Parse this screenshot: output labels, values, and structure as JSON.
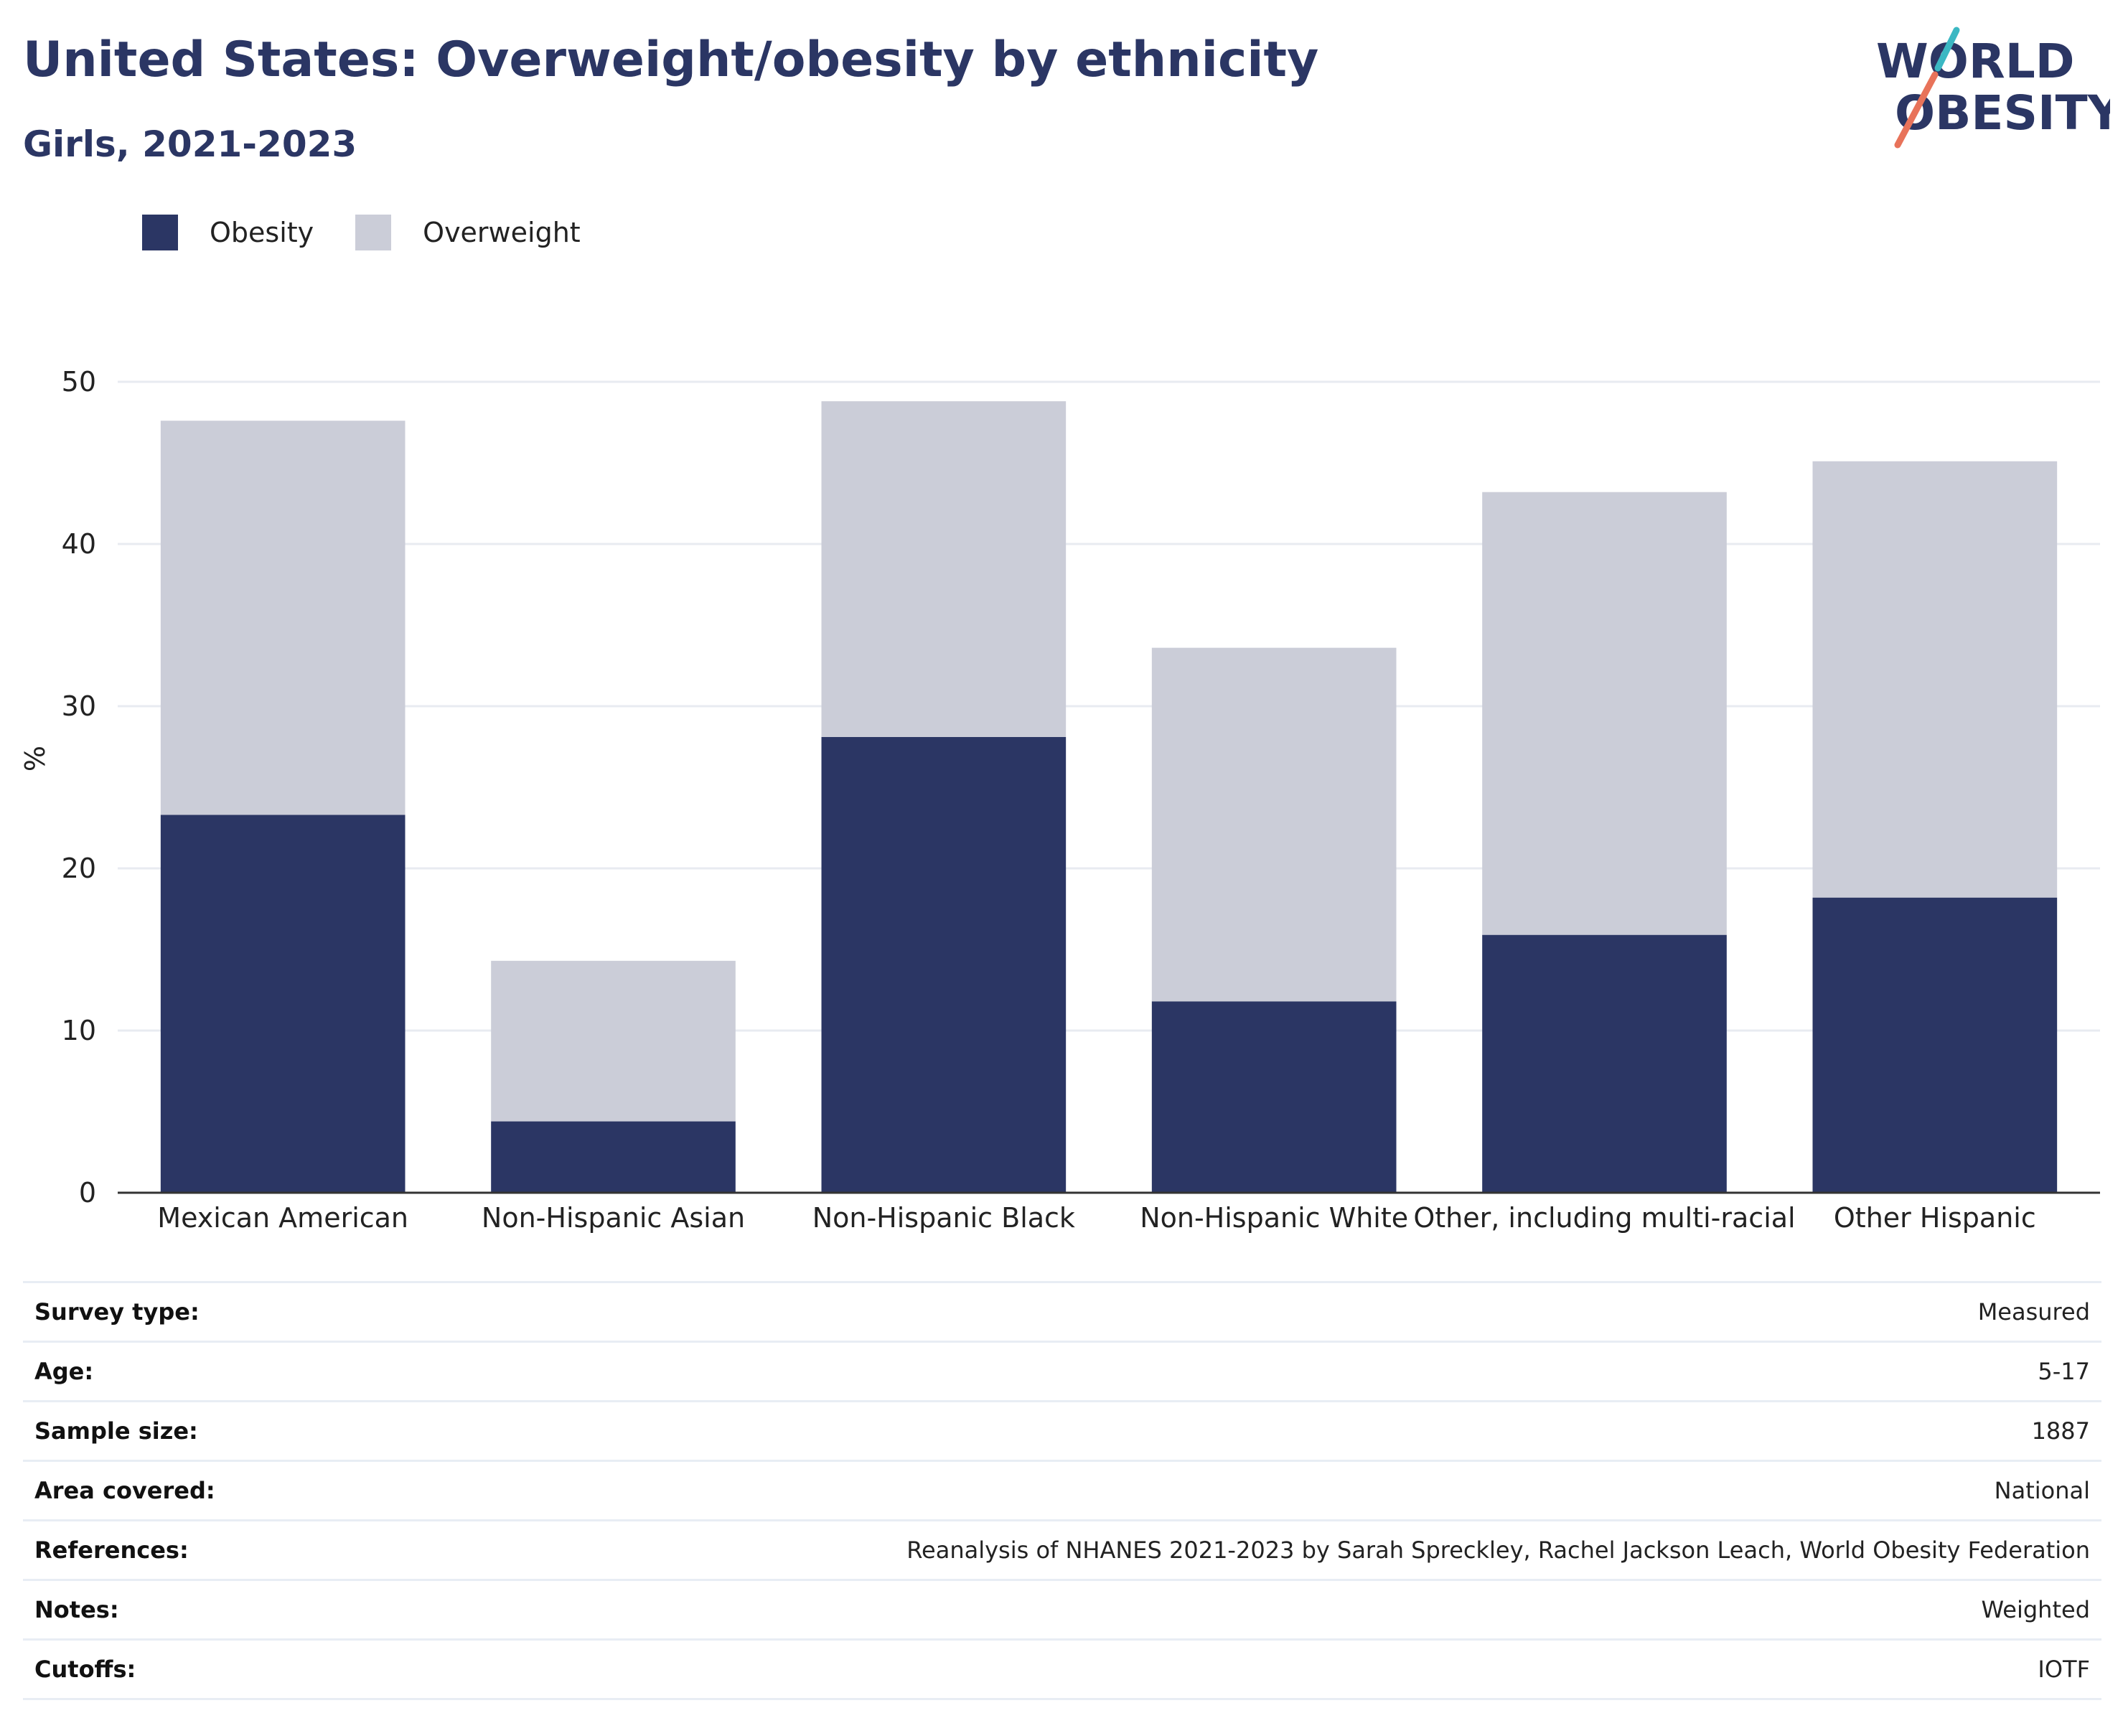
{
  "title": "United States: Overweight/obesity by ethnicity",
  "subtitle": "Girls, 2021-2023",
  "logo": {
    "line1": "WORLD",
    "line2": "OBESITY",
    "accent_teal": "#3bb8c3",
    "accent_coral": "#e8735a"
  },
  "legend": [
    {
      "label": "Obesity",
      "color": "#2b3664"
    },
    {
      "label": "Overweight",
      "color": "#cbcdd8"
    }
  ],
  "chart_data": {
    "type": "bar",
    "stacked": true,
    "title": "",
    "xlabel": "",
    "ylabel": "%",
    "ylim": [
      0,
      50
    ],
    "yticks": [
      0,
      10,
      20,
      30,
      40,
      50
    ],
    "grid": true,
    "legend_position": "top-left",
    "categories": [
      "Mexican American",
      "Non-Hispanic Asian",
      "Non-Hispanic Black",
      "Non-Hispanic White",
      "Other, including multi-racial",
      "Other Hispanic"
    ],
    "series": [
      {
        "name": "Obesity",
        "color": "#2b3664",
        "values": [
          23.3,
          4.4,
          28.1,
          11.8,
          15.9,
          18.2
        ]
      },
      {
        "name": "Overweight",
        "color": "#cbcdd8",
        "values": [
          24.3,
          9.9,
          20.7,
          21.8,
          27.3,
          26.9
        ]
      }
    ]
  },
  "metadata": [
    {
      "key": "Survey type:",
      "value": "Measured"
    },
    {
      "key": "Age:",
      "value": "5-17"
    },
    {
      "key": "Sample size:",
      "value": "1887"
    },
    {
      "key": "Area covered:",
      "value": "National"
    },
    {
      "key": "References:",
      "value": "Reanalysis of NHANES 2021-2023 by Sarah Spreckley, Rachel Jackson Leach, World Obesity Federation"
    },
    {
      "key": "Notes:",
      "value": "Weighted"
    },
    {
      "key": "Cutoffs:",
      "value": "IOTF"
    }
  ]
}
